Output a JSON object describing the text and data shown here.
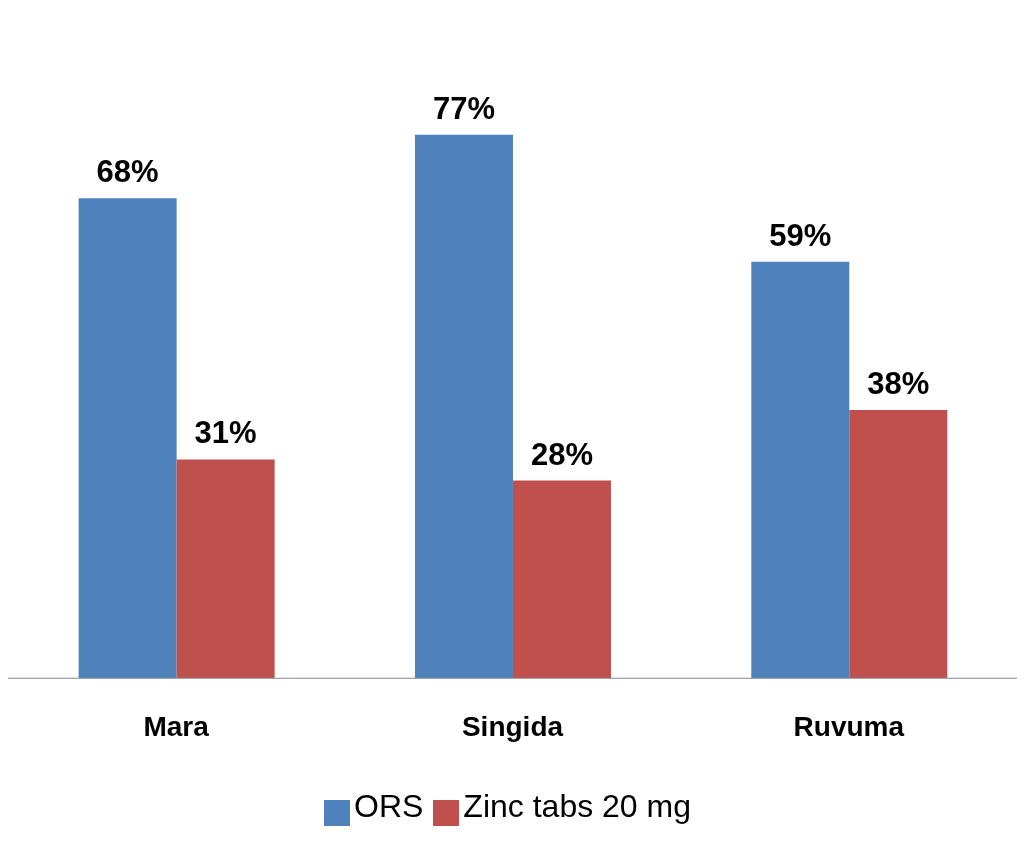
{
  "chart_data": {
    "type": "bar",
    "categories": [
      "Mara",
      "Singida",
      "Ruvuma"
    ],
    "series": [
      {
        "name": "ORS",
        "color": "#4f81bd",
        "values": [
          68,
          77,
          59
        ],
        "value_labels": [
          "68%",
          "77%",
          "59%"
        ]
      },
      {
        "name": "Zinc tabs 20 mg",
        "color": "#c0504d",
        "values": [
          31,
          28,
          38
        ],
        "value_labels": [
          "31%",
          "28%",
          "38%"
        ]
      }
    ],
    "legend": "bottom"
  }
}
